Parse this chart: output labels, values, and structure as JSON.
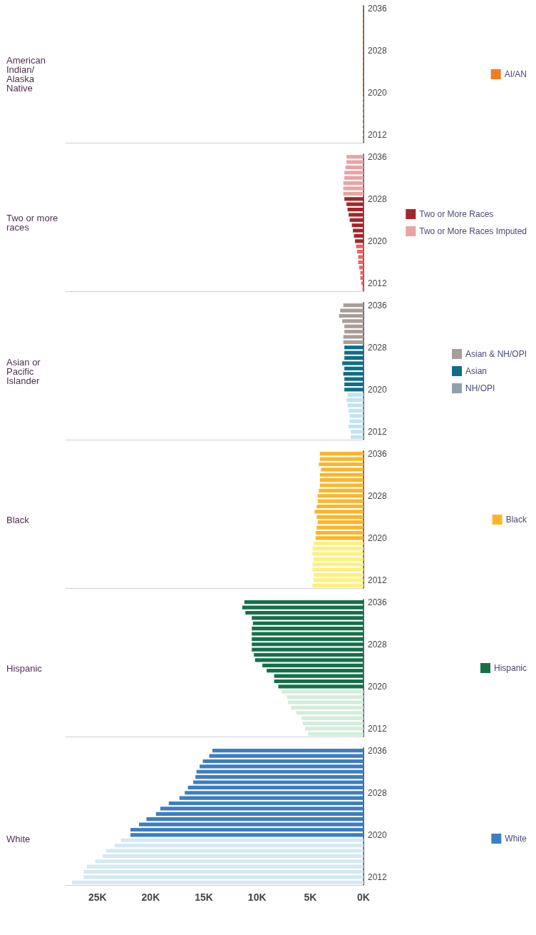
{
  "chart_data": [
    {
      "type": "bar",
      "orientation": "horizontal",
      "title": "American Indian/Alaska Native",
      "stacked": true,
      "legend": "right",
      "tick_labels": "y",
      "xlim": [
        28,
        0
      ],
      "categories": [
        "2036",
        null,
        null,
        null,
        null,
        null,
        null,
        null,
        "2028",
        null,
        null,
        null,
        null,
        null,
        null,
        null,
        "2020",
        null,
        null,
        null,
        null,
        null,
        null,
        null,
        "2012",
        null
      ],
      "series": [
        {
          "color": "#fbc98a",
          "values": [
            null,
            null,
            null,
            null,
            null,
            null,
            null,
            null,
            null,
            null,
            null,
            null,
            null,
            null,
            null,
            null,
            null,
            0.05,
            0.05,
            0.05,
            0.05,
            0.05,
            0.05,
            0.05,
            0.05,
            0.05
          ]
        },
        {
          "name": "AI/AN",
          "color": "#f47b20",
          "values": [
            0.05,
            0.05,
            0.05,
            0.05,
            0.05,
            0.05,
            0.05,
            0.05,
            0.05,
            0.05,
            0.05,
            0.05,
            0.05,
            0.05,
            0.05,
            0.05,
            0.05,
            null,
            null,
            null,
            null,
            null,
            null,
            null,
            null,
            null
          ]
        }
      ]
    },
    {
      "type": "bar",
      "orientation": "horizontal",
      "title": "Two or more races",
      "stacked": true,
      "legend": "right",
      "tick_labels": "y",
      "xlim": [
        28,
        0
      ],
      "categories": [
        "2036",
        null,
        null,
        null,
        null,
        null,
        null,
        null,
        "2028",
        null,
        null,
        null,
        null,
        null,
        null,
        null,
        "2020",
        null,
        null,
        null,
        null,
        null,
        null,
        null,
        "2012",
        null
      ],
      "series": [
        {
          "color": "#f06262",
          "values": [
            null,
            null,
            null,
            null,
            null,
            null,
            null,
            null,
            null,
            null,
            null,
            null,
            null,
            null,
            null,
            null,
            null,
            0.7,
            0.6,
            0.5,
            0.5,
            0.4,
            0.3,
            0.3,
            0.2,
            0.1
          ]
        },
        {
          "name": "Two or More Races",
          "color": "#a3262b",
          "values": [
            null,
            null,
            null,
            null,
            null,
            null,
            null,
            null,
            1.8,
            1.6,
            1.5,
            1.4,
            1.3,
            1.1,
            1.0,
            0.9,
            0.8,
            null,
            null,
            null,
            null,
            null,
            null,
            null,
            null,
            null
          ]
        },
        {
          "name": "Two or More Races Imputed",
          "color": "#e9a3a3",
          "values": [
            1.6,
            1.6,
            1.7,
            1.8,
            1.8,
            1.9,
            1.9,
            1.9,
            null,
            null,
            null,
            null,
            null,
            null,
            null,
            null,
            null,
            null,
            null,
            null,
            null,
            null,
            null,
            null,
            null,
            null
          ]
        }
      ]
    },
    {
      "type": "bar",
      "orientation": "horizontal",
      "title": "Asian or Pacific Islander",
      "stacked": true,
      "legend": "right",
      "tick_labels": "y",
      "xlim": [
        28,
        0
      ],
      "categories": [
        "2036",
        null,
        null,
        null,
        null,
        null,
        null,
        null,
        "2028",
        null,
        null,
        null,
        null,
        null,
        null,
        null,
        "2020",
        null,
        null,
        null,
        null,
        null,
        null,
        null,
        "2012",
        null
      ],
      "series": [
        {
          "color": "#bfe5ee",
          "values": [
            null,
            null,
            null,
            null,
            null,
            null,
            null,
            null,
            null,
            null,
            null,
            null,
            null,
            null,
            null,
            null,
            null,
            1.5,
            1.6,
            1.5,
            1.4,
            1.3,
            1.3,
            1.4,
            1.2,
            1.2
          ]
        },
        {
          "name": "Asian & NH/OPI",
          "color": "#a89e99",
          "values": [
            1.9,
            2.2,
            2.3,
            2.0,
            1.8,
            1.8,
            1.9,
            1.9,
            null,
            null,
            null,
            null,
            null,
            null,
            null,
            null,
            null,
            null,
            null,
            null,
            null,
            null,
            null,
            null,
            null,
            null
          ]
        },
        {
          "name": "Asian",
          "color": "#0e6e86",
          "values": [
            null,
            null,
            null,
            null,
            null,
            null,
            null,
            null,
            1.8,
            1.8,
            1.8,
            2.0,
            1.8,
            1.9,
            1.8,
            1.8,
            1.8,
            null,
            null,
            null,
            null,
            null,
            null,
            null,
            null,
            null
          ]
        },
        {
          "name": "NH/OPI",
          "color": "#8ea2ac",
          "values": [
            null,
            null,
            null,
            null,
            null,
            null,
            null,
            null,
            null,
            null,
            null,
            null,
            null,
            null,
            null,
            null,
            null,
            null,
            null,
            null,
            null,
            null,
            null,
            null,
            null,
            null
          ]
        }
      ]
    },
    {
      "type": "bar",
      "orientation": "horizontal",
      "title": "Black",
      "stacked": true,
      "legend": "right",
      "tick_labels": "y",
      "xlim": [
        28,
        0
      ],
      "categories": [
        "2036",
        null,
        null,
        null,
        null,
        null,
        null,
        null,
        "2028",
        null,
        null,
        null,
        null,
        null,
        null,
        null,
        "2020",
        null,
        null,
        null,
        null,
        null,
        null,
        null,
        "2012",
        null
      ],
      "series": [
        {
          "color": "#fff07a",
          "values": [
            null,
            null,
            null,
            null,
            null,
            null,
            null,
            null,
            null,
            null,
            null,
            null,
            null,
            null,
            null,
            null,
            null,
            4.7,
            4.8,
            4.8,
            4.7,
            4.8,
            4.8,
            4.7,
            4.7,
            4.8
          ]
        },
        {
          "name": "Black",
          "color": "#fdb528",
          "values": [
            4.1,
            4.1,
            4.2,
            4.0,
            4.1,
            4.1,
            4.1,
            4.2,
            4.3,
            4.3,
            4.4,
            4.6,
            4.4,
            4.3,
            4.4,
            4.5,
            4.5,
            null,
            null,
            null,
            null,
            null,
            null,
            null,
            null,
            null
          ]
        }
      ]
    },
    {
      "type": "bar",
      "orientation": "horizontal",
      "title": "Hispanic",
      "stacked": true,
      "legend": "right",
      "tick_labels": "y",
      "xlim": [
        28,
        0
      ],
      "categories": [
        "2036",
        null,
        null,
        null,
        null,
        null,
        null,
        null,
        "2028",
        null,
        null,
        null,
        null,
        null,
        null,
        null,
        "2020",
        null,
        null,
        null,
        null,
        null,
        null,
        null,
        "2012",
        null
      ],
      "series": [
        {
          "color": "#d5ecdb",
          "values": [
            null,
            null,
            null,
            null,
            null,
            null,
            null,
            null,
            null,
            null,
            null,
            null,
            null,
            null,
            null,
            null,
            null,
            7.7,
            7.2,
            7.1,
            6.8,
            6.3,
            5.8,
            5.7,
            5.5,
            5.2
          ]
        },
        {
          "name": "Hispanic",
          "color": "#15704a",
          "values": [
            11.2,
            11.4,
            11.1,
            10.5,
            10.4,
            10.5,
            10.5,
            10.5,
            10.5,
            10.5,
            10.3,
            10.2,
            9.5,
            9.1,
            8.4,
            8.4,
            8.0,
            null,
            null,
            null,
            null,
            null,
            null,
            null,
            null,
            null
          ]
        }
      ]
    },
    {
      "type": "bar",
      "orientation": "horizontal",
      "title": "White",
      "stacked": true,
      "legend": "right",
      "xlim": [
        28,
        0
      ],
      "xticks": [
        {
          "value": 0,
          "label": "0K"
        },
        {
          "value": 5,
          "label": "5K"
        },
        {
          "value": 10,
          "label": "10K"
        },
        {
          "value": 15,
          "label": "15K"
        },
        {
          "value": 20,
          "label": "20K"
        },
        {
          "value": 25,
          "label": "25K"
        }
      ],
      "categories": [
        "2036",
        null,
        null,
        null,
        null,
        null,
        null,
        null,
        "2028",
        null,
        null,
        null,
        null,
        null,
        null,
        null,
        "2020",
        null,
        null,
        null,
        null,
        null,
        null,
        null,
        "2012",
        null
      ],
      "series": [
        {
          "color": "#d4e9f4",
          "values": [
            null,
            null,
            null,
            null,
            null,
            null,
            null,
            null,
            null,
            null,
            null,
            null,
            null,
            null,
            null,
            null,
            null,
            22.8,
            23.4,
            24.2,
            24.5,
            25.2,
            26.0,
            26.3,
            26.3,
            27.4
          ]
        },
        {
          "name": "White",
          "color": "#3d7ec1",
          "values": [
            14.2,
            14.5,
            15.1,
            15.4,
            15.7,
            15.8,
            16.0,
            16.5,
            16.8,
            17.3,
            18.3,
            19.1,
            19.5,
            20.4,
            21.1,
            21.9,
            21.9,
            null,
            null,
            null,
            null,
            null,
            null,
            null,
            null,
            null
          ]
        }
      ]
    }
  ]
}
